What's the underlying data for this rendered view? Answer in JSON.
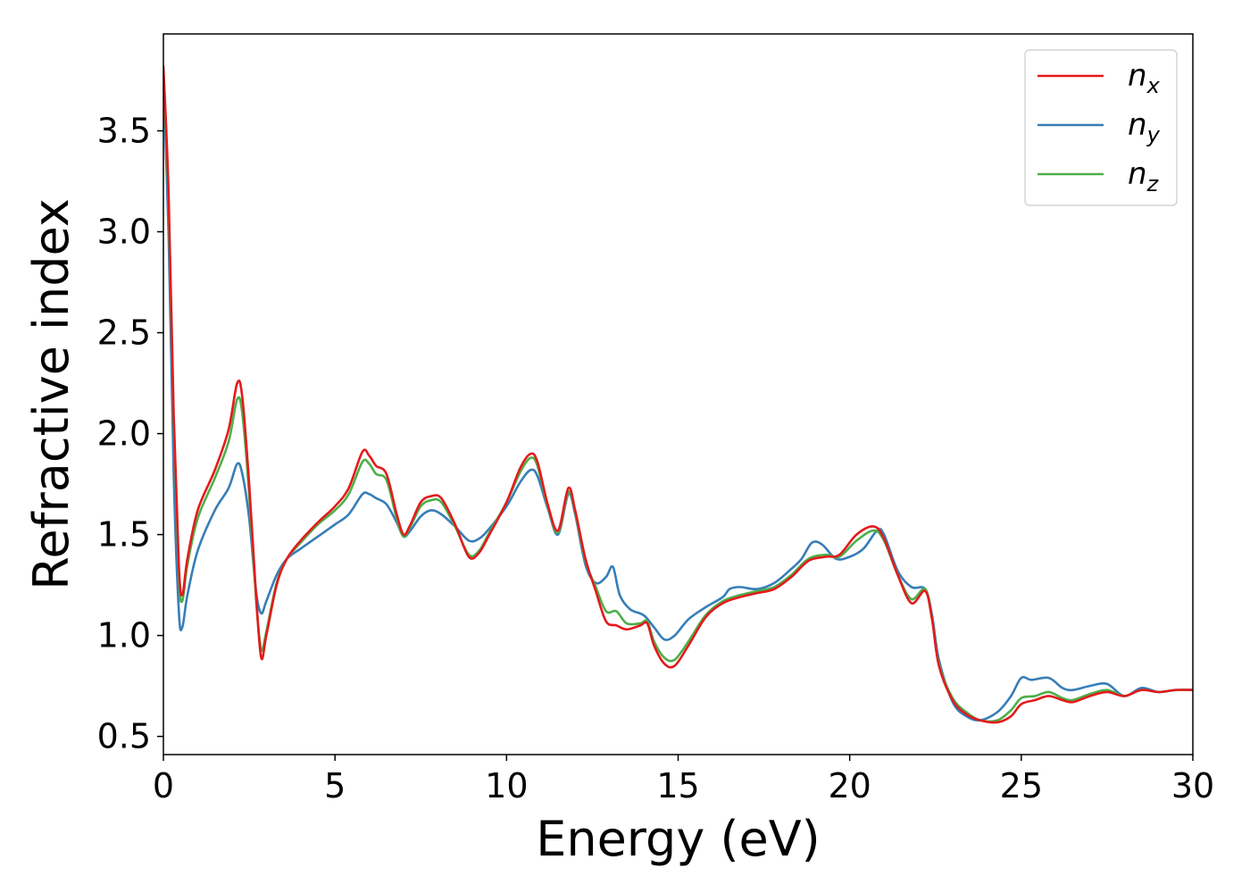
{
  "chart_data": {
    "type": "line",
    "xlabel": "Energy (eV)",
    "ylabel": "Refractive index",
    "xlim": [
      0,
      30
    ],
    "ylim": [
      0.41,
      3.98
    ],
    "x_ticks": [
      0,
      5,
      10,
      15,
      20,
      25,
      30
    ],
    "y_ticks": [
      0.5,
      1.0,
      1.5,
      2.0,
      2.5,
      3.0,
      3.5
    ],
    "x_tick_labels": [
      "0",
      "5",
      "10",
      "15",
      "20",
      "25",
      "30"
    ],
    "y_tick_labels": [
      "0.5",
      "1.0",
      "1.5",
      "2.0",
      "2.5",
      "3.0",
      "3.5"
    ],
    "grid": false,
    "legend_position": "top-right",
    "series": [
      {
        "name": "n_x",
        "legend_main": "n",
        "legend_sub": "x",
        "color": "#e41a1c",
        "points": [
          [
            0,
            3.82
          ],
          [
            0.15,
            3.2
          ],
          [
            0.3,
            2.1
          ],
          [
            0.45,
            1.35
          ],
          [
            0.55,
            1.2
          ],
          [
            0.7,
            1.38
          ],
          [
            1.0,
            1.62
          ],
          [
            1.5,
            1.82
          ],
          [
            1.9,
            2.02
          ],
          [
            2.15,
            2.25
          ],
          [
            2.3,
            2.18
          ],
          [
            2.5,
            1.75
          ],
          [
            2.7,
            1.2
          ],
          [
            2.85,
            0.89
          ],
          [
            3.0,
            1.0
          ],
          [
            3.3,
            1.25
          ],
          [
            3.6,
            1.38
          ],
          [
            4.0,
            1.47
          ],
          [
            4.5,
            1.56
          ],
          [
            5.0,
            1.64
          ],
          [
            5.4,
            1.73
          ],
          [
            5.8,
            1.91
          ],
          [
            6.0,
            1.89
          ],
          [
            6.2,
            1.84
          ],
          [
            6.5,
            1.8
          ],
          [
            6.8,
            1.6
          ],
          [
            7.0,
            1.5
          ],
          [
            7.2,
            1.55
          ],
          [
            7.5,
            1.66
          ],
          [
            7.8,
            1.69
          ],
          [
            8.1,
            1.68
          ],
          [
            8.5,
            1.55
          ],
          [
            8.9,
            1.39
          ],
          [
            9.2,
            1.41
          ],
          [
            9.5,
            1.5
          ],
          [
            10.0,
            1.66
          ],
          [
            10.4,
            1.83
          ],
          [
            10.7,
            1.9
          ],
          [
            10.9,
            1.86
          ],
          [
            11.2,
            1.65
          ],
          [
            11.5,
            1.52
          ],
          [
            11.8,
            1.73
          ],
          [
            12.0,
            1.62
          ],
          [
            12.3,
            1.38
          ],
          [
            12.6,
            1.22
          ],
          [
            12.9,
            1.07
          ],
          [
            13.2,
            1.05
          ],
          [
            13.5,
            1.03
          ],
          [
            13.9,
            1.05
          ],
          [
            14.1,
            1.06
          ],
          [
            14.3,
            0.95
          ],
          [
            14.6,
            0.86
          ],
          [
            14.9,
            0.85
          ],
          [
            15.3,
            0.95
          ],
          [
            15.8,
            1.09
          ],
          [
            16.3,
            1.16
          ],
          [
            16.8,
            1.19
          ],
          [
            17.3,
            1.21
          ],
          [
            17.8,
            1.23
          ],
          [
            18.3,
            1.29
          ],
          [
            18.8,
            1.37
          ],
          [
            19.3,
            1.39
          ],
          [
            19.7,
            1.4
          ],
          [
            20.2,
            1.5
          ],
          [
            20.7,
            1.54
          ],
          [
            21.0,
            1.48
          ],
          [
            21.4,
            1.3
          ],
          [
            21.8,
            1.16
          ],
          [
            22.2,
            1.22
          ],
          [
            22.4,
            1.08
          ],
          [
            22.6,
            0.85
          ],
          [
            23.0,
            0.68
          ],
          [
            23.4,
            0.61
          ],
          [
            23.8,
            0.58
          ],
          [
            24.3,
            0.57
          ],
          [
            24.7,
            0.6
          ],
          [
            25.0,
            0.66
          ],
          [
            25.4,
            0.68
          ],
          [
            25.8,
            0.7
          ],
          [
            26.2,
            0.68
          ],
          [
            26.5,
            0.67
          ],
          [
            27.0,
            0.7
          ],
          [
            27.5,
            0.72
          ],
          [
            28.0,
            0.7
          ],
          [
            28.5,
            0.73
          ],
          [
            29.0,
            0.72
          ],
          [
            29.5,
            0.73
          ],
          [
            30,
            0.73
          ]
        ]
      },
      {
        "name": "n_y",
        "legend_main": "n",
        "legend_sub": "y",
        "color": "#377eb8",
        "points": [
          [
            0,
            3.78
          ],
          [
            0.15,
            3.0
          ],
          [
            0.3,
            1.8
          ],
          [
            0.45,
            1.12
          ],
          [
            0.55,
            1.04
          ],
          [
            0.7,
            1.2
          ],
          [
            1.0,
            1.42
          ],
          [
            1.5,
            1.62
          ],
          [
            1.9,
            1.73
          ],
          [
            2.15,
            1.85
          ],
          [
            2.3,
            1.8
          ],
          [
            2.5,
            1.58
          ],
          [
            2.7,
            1.22
          ],
          [
            2.85,
            1.11
          ],
          [
            3.0,
            1.17
          ],
          [
            3.3,
            1.3
          ],
          [
            3.6,
            1.38
          ],
          [
            4.0,
            1.43
          ],
          [
            4.5,
            1.49
          ],
          [
            5.0,
            1.55
          ],
          [
            5.4,
            1.6
          ],
          [
            5.8,
            1.7
          ],
          [
            6.0,
            1.7
          ],
          [
            6.2,
            1.68
          ],
          [
            6.5,
            1.65
          ],
          [
            6.8,
            1.56
          ],
          [
            7.0,
            1.49
          ],
          [
            7.2,
            1.52
          ],
          [
            7.5,
            1.59
          ],
          [
            7.8,
            1.62
          ],
          [
            8.1,
            1.6
          ],
          [
            8.5,
            1.54
          ],
          [
            8.9,
            1.47
          ],
          [
            9.2,
            1.48
          ],
          [
            9.5,
            1.53
          ],
          [
            10.0,
            1.64
          ],
          [
            10.4,
            1.76
          ],
          [
            10.7,
            1.82
          ],
          [
            10.9,
            1.79
          ],
          [
            11.2,
            1.63
          ],
          [
            11.5,
            1.5
          ],
          [
            11.8,
            1.7
          ],
          [
            12.0,
            1.6
          ],
          [
            12.3,
            1.35
          ],
          [
            12.6,
            1.26
          ],
          [
            12.9,
            1.29
          ],
          [
            13.1,
            1.34
          ],
          [
            13.3,
            1.2
          ],
          [
            13.6,
            1.13
          ],
          [
            14.0,
            1.1
          ],
          [
            14.3,
            1.04
          ],
          [
            14.6,
            0.98
          ],
          [
            14.9,
            1.0
          ],
          [
            15.3,
            1.08
          ],
          [
            15.8,
            1.14
          ],
          [
            16.3,
            1.19
          ],
          [
            16.5,
            1.23
          ],
          [
            16.8,
            1.24
          ],
          [
            17.3,
            1.23
          ],
          [
            17.8,
            1.26
          ],
          [
            18.3,
            1.33
          ],
          [
            18.6,
            1.38
          ],
          [
            18.9,
            1.46
          ],
          [
            19.2,
            1.45
          ],
          [
            19.6,
            1.38
          ],
          [
            20.0,
            1.39
          ],
          [
            20.4,
            1.43
          ],
          [
            20.8,
            1.52
          ],
          [
            21.0,
            1.5
          ],
          [
            21.4,
            1.32
          ],
          [
            21.8,
            1.24
          ],
          [
            22.2,
            1.23
          ],
          [
            22.4,
            1.1
          ],
          [
            22.6,
            0.88
          ],
          [
            23.0,
            0.67
          ],
          [
            23.4,
            0.6
          ],
          [
            23.8,
            0.58
          ],
          [
            24.3,
            0.62
          ],
          [
            24.7,
            0.7
          ],
          [
            25.0,
            0.79
          ],
          [
            25.3,
            0.78
          ],
          [
            25.8,
            0.79
          ],
          [
            26.2,
            0.74
          ],
          [
            26.5,
            0.73
          ],
          [
            27.0,
            0.75
          ],
          [
            27.5,
            0.76
          ],
          [
            28.0,
            0.7
          ],
          [
            28.5,
            0.74
          ],
          [
            29.0,
            0.72
          ],
          [
            29.5,
            0.73
          ],
          [
            30,
            0.73
          ]
        ]
      },
      {
        "name": "n_z",
        "legend_main": "n",
        "legend_sub": "z",
        "color": "#4daf4a",
        "points": [
          [
            0,
            3.78
          ],
          [
            0.15,
            3.15
          ],
          [
            0.3,
            2.05
          ],
          [
            0.45,
            1.3
          ],
          [
            0.55,
            1.17
          ],
          [
            0.7,
            1.35
          ],
          [
            1.0,
            1.58
          ],
          [
            1.5,
            1.78
          ],
          [
            1.9,
            1.96
          ],
          [
            2.15,
            2.17
          ],
          [
            2.3,
            2.1
          ],
          [
            2.5,
            1.7
          ],
          [
            2.7,
            1.18
          ],
          [
            2.85,
            0.93
          ],
          [
            3.0,
            1.02
          ],
          [
            3.3,
            1.26
          ],
          [
            3.6,
            1.38
          ],
          [
            4.0,
            1.46
          ],
          [
            4.5,
            1.55
          ],
          [
            5.0,
            1.62
          ],
          [
            5.4,
            1.7
          ],
          [
            5.8,
            1.86
          ],
          [
            6.0,
            1.85
          ],
          [
            6.2,
            1.8
          ],
          [
            6.5,
            1.77
          ],
          [
            6.8,
            1.58
          ],
          [
            7.0,
            1.49
          ],
          [
            7.2,
            1.54
          ],
          [
            7.5,
            1.64
          ],
          [
            7.8,
            1.67
          ],
          [
            8.1,
            1.66
          ],
          [
            8.5,
            1.54
          ],
          [
            8.9,
            1.4
          ],
          [
            9.2,
            1.42
          ],
          [
            9.5,
            1.51
          ],
          [
            10.0,
            1.66
          ],
          [
            10.4,
            1.81
          ],
          [
            10.7,
            1.88
          ],
          [
            10.9,
            1.84
          ],
          [
            11.2,
            1.64
          ],
          [
            11.5,
            1.51
          ],
          [
            11.8,
            1.71
          ],
          [
            12.0,
            1.61
          ],
          [
            12.3,
            1.37
          ],
          [
            12.6,
            1.24
          ],
          [
            12.9,
            1.12
          ],
          [
            13.2,
            1.12
          ],
          [
            13.5,
            1.06
          ],
          [
            13.9,
            1.06
          ],
          [
            14.1,
            1.07
          ],
          [
            14.3,
            0.97
          ],
          [
            14.6,
            0.89
          ],
          [
            14.9,
            0.88
          ],
          [
            15.3,
            0.97
          ],
          [
            15.8,
            1.1
          ],
          [
            16.3,
            1.17
          ],
          [
            16.8,
            1.2
          ],
          [
            17.3,
            1.22
          ],
          [
            17.8,
            1.24
          ],
          [
            18.3,
            1.3
          ],
          [
            18.8,
            1.38
          ],
          [
            19.3,
            1.4
          ],
          [
            19.7,
            1.39
          ],
          [
            20.2,
            1.47
          ],
          [
            20.7,
            1.52
          ],
          [
            21.0,
            1.47
          ],
          [
            21.4,
            1.3
          ],
          [
            21.8,
            1.18
          ],
          [
            22.2,
            1.23
          ],
          [
            22.4,
            1.08
          ],
          [
            22.6,
            0.86
          ],
          [
            23.0,
            0.69
          ],
          [
            23.4,
            0.62
          ],
          [
            23.8,
            0.58
          ],
          [
            24.3,
            0.58
          ],
          [
            24.7,
            0.63
          ],
          [
            25.0,
            0.69
          ],
          [
            25.4,
            0.7
          ],
          [
            25.8,
            0.72
          ],
          [
            26.2,
            0.69
          ],
          [
            26.5,
            0.68
          ],
          [
            27.0,
            0.71
          ],
          [
            27.5,
            0.73
          ],
          [
            28.0,
            0.7
          ],
          [
            28.5,
            0.73
          ],
          [
            29.0,
            0.72
          ],
          [
            29.5,
            0.73
          ],
          [
            30,
            0.73
          ]
        ]
      }
    ]
  }
}
